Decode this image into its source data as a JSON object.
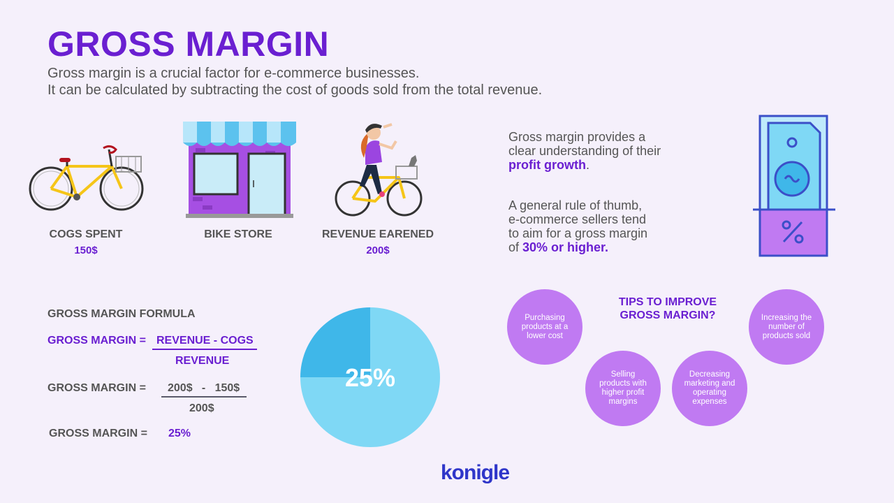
{
  "header": {
    "title": "GROSS MARGIN",
    "intro_line1": "Gross margin is a crucial factor for e-commerce businesses.",
    "intro_line2": "It can be calculated by subtracting the cost of goods sold from the total revenue."
  },
  "illustrations": {
    "cogs_label": "COGS SPENT",
    "cogs_value": "150$",
    "store_label": "BIKE STORE",
    "revenue_label": "REVENUE EARENED",
    "revenue_value": "200$"
  },
  "side_notes": {
    "p1_line1": "Gross margin provides a",
    "p1_line2": "clear understanding of their",
    "p1_highlight": "profit growth",
    "p1_end": ".",
    "p2_line1": "A general rule of thumb,",
    "p2_line2": "e-commerce sellers tend",
    "p2_line3": "to aim for a gross margin",
    "p2_line4_prefix": "of ",
    "p2_highlight": "30% or higher."
  },
  "formula": {
    "heading": "GROSS MARGIN FORMULA",
    "row1_label": "GROSS MARGIN =",
    "row1_numerator": "REVENUE - COGS",
    "row1_denominator": "REVENUE",
    "row2_label": "GROSS MARGIN =",
    "row2_numerator": "200$   -   150$",
    "row2_denominator": "200$",
    "row3_label": "GROSS MARGIN =",
    "row3_value": "25%"
  },
  "chart_data": {
    "type": "pie",
    "slices": [
      {
        "label": "",
        "value": 25,
        "color": "#3fb7e9"
      },
      {
        "label": "",
        "value": 75,
        "color": "#7fd8f5"
      }
    ],
    "center_label": "25%"
  },
  "tips": {
    "title_line1": "TIPS TO IMPROVE",
    "title_line2": "GROSS MARGIN?",
    "items": [
      "Purchasing products at a lower cost",
      "Selling products with higher profit margins",
      "Decreasing marketing and operating expenses",
      "Increasing the number of products sold"
    ]
  },
  "colors": {
    "accent": "#6a1fd1",
    "bubble": "#c07af2",
    "pie_dark": "#3fb7e9",
    "pie_light": "#7fd8f5",
    "logo": "#2f36c9"
  },
  "logo": {
    "text": "konigle"
  }
}
